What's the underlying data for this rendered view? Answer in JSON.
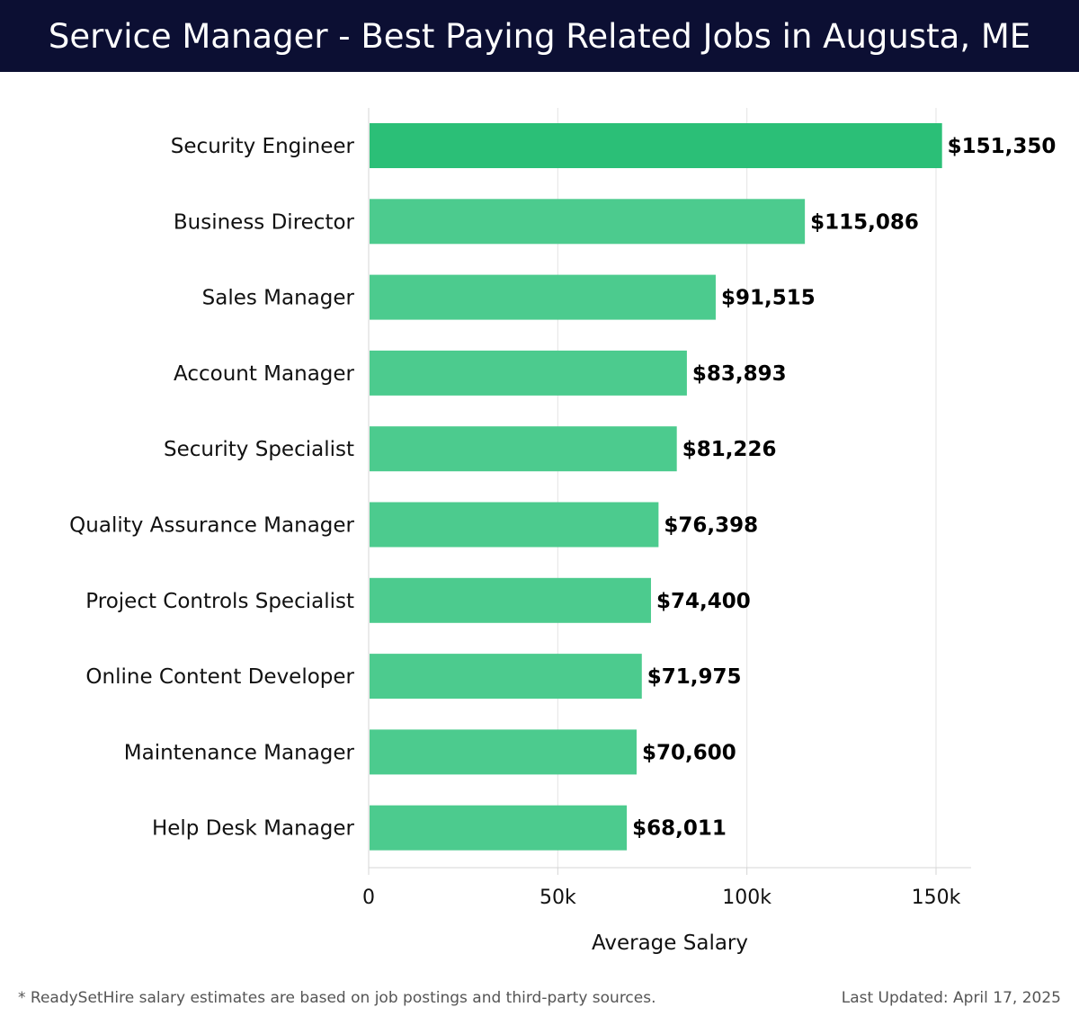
{
  "header": {
    "title": "Service Manager - Best Paying Related Jobs in Augusta, ME"
  },
  "chart_data": {
    "type": "bar",
    "orientation": "horizontal",
    "title": "Service Manager - Best Paying Related Jobs in Augusta, ME",
    "xlabel": "Average Salary",
    "ylabel": "",
    "xlim": [
      0,
      160000
    ],
    "xticks": [
      0,
      50000,
      100000,
      150000
    ],
    "xtick_labels": [
      "0",
      "50k",
      "100k",
      "150k"
    ],
    "grid": true,
    "categories": [
      "Security Engineer",
      "Business Director",
      "Sales Manager",
      "Account Manager",
      "Security Specialist",
      "Quality Assurance Manager",
      "Project Controls Specialist",
      "Online Content Developer",
      "Maintenance Manager",
      "Help Desk Manager"
    ],
    "values": [
      151350,
      115086,
      91515,
      83893,
      81226,
      76398,
      74400,
      71975,
      70600,
      68011
    ],
    "value_labels": [
      "$151,350",
      "$115,086",
      "$91,515",
      "$83,893",
      "$81,226",
      "$76,398",
      "$74,400",
      "$71,975",
      "$70,600",
      "$68,011"
    ],
    "colors": {
      "top_bar": "#2bbf77",
      "bar": "#4ccb8e",
      "grid": "#e3e3e3",
      "axis": "#d5d5d5",
      "label": "#000000"
    }
  },
  "footer": {
    "note": "* ReadySetHire salary estimates are based on job postings and third-party sources.",
    "updated": "Last Updated: April 17, 2025"
  }
}
